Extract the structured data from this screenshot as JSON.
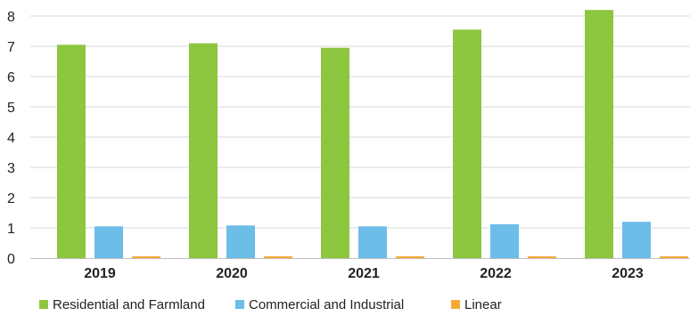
{
  "chart_data": {
    "type": "bar",
    "title": "",
    "xlabel": "",
    "ylabel": "",
    "categories": [
      "2019",
      "2020",
      "2021",
      "2022",
      "2023"
    ],
    "y_tick_labels": [
      "0",
      "1",
      "2",
      "3",
      "4",
      "5",
      "6",
      "7",
      "8"
    ],
    "ylim": [
      0,
      8
    ],
    "grid": true,
    "legend_position": "bottom-left",
    "series": [
      {
        "name": "Residential and Farmland",
        "color": "#8dc63f",
        "values": [
          7.05,
          7.1,
          6.95,
          7.55,
          8.2
        ]
      },
      {
        "name": "Commercial and Industrial",
        "color": "#6cbde8",
        "values": [
          1.05,
          1.08,
          1.05,
          1.12,
          1.2
        ]
      },
      {
        "name": "Linear",
        "color": "#f7a934",
        "values": [
          0.06,
          0.06,
          0.06,
          0.06,
          0.06
        ]
      }
    ]
  }
}
